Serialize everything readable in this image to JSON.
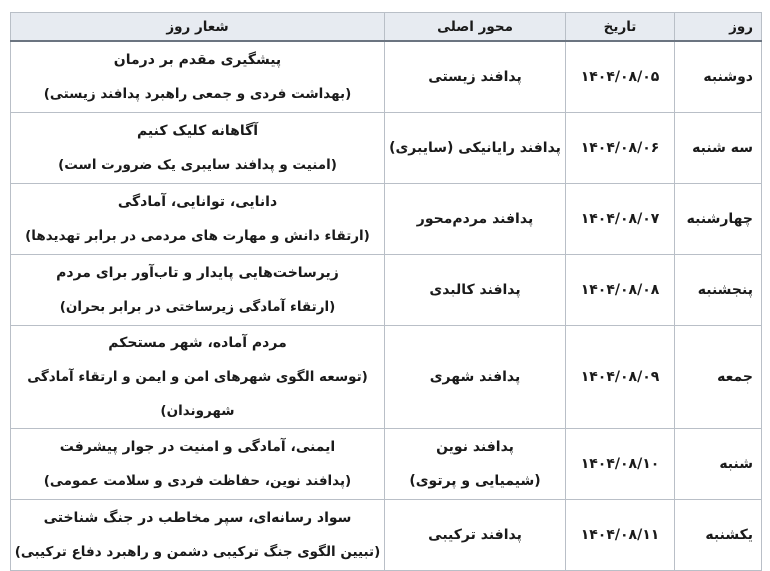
{
  "headers": {
    "day": "روز",
    "date": "تاریخ",
    "axis": "محور اصلی",
    "slogan": "شعار روز"
  },
  "rows": [
    {
      "day": "دوشنبه",
      "date": "۱۴۰۴/۰۸/۰۵",
      "axis": [
        "پدافند زیستی"
      ],
      "slogan": "پیشگیری مقدم بر درمان",
      "subtitle": "(بهداشت فردی و جمعی راهبرد پدافند زیستی)"
    },
    {
      "day": "سه شنبه",
      "date": "۱۴۰۴/۰۸/۰۶",
      "axis": [
        "پدافند رایانیکی (سایبری)"
      ],
      "slogan": "آگاهانه کلیک کنیم",
      "subtitle": "(امنیت و پدافند سایبری یک ضرورت است)"
    },
    {
      "day": "چهارشنبه",
      "date": "۱۴۰۴/۰۸/۰۷",
      "axis": [
        "پدافند مردم‌محور"
      ],
      "slogan": "دانایی، توانایی، آمادگی",
      "subtitle": "(ارتقاء دانش و مهارت های مردمی در برابر تهدیدها)"
    },
    {
      "day": "پنجشنبه",
      "date": "۱۴۰۴/۰۸/۰۸",
      "axis": [
        "پدافند کالبدی"
      ],
      "slogan": "زیرساخت‌هایی پایدار و تاب‌آور برای مردم",
      "subtitle": "(ارتقاء آمادگی زیرساختی در برابر بحران)"
    },
    {
      "day": "جمعه",
      "date": "۱۴۰۴/۰۸/۰۹",
      "axis": [
        "پدافند شهری"
      ],
      "slogan": "مردم آماده، شهر مستحکم",
      "subtitle": "(توسعه الگوی شهرهای امن و ایمن و ارتقاء آمادگی شهروندان)"
    },
    {
      "day": "شنبه",
      "date": "۱۴۰۴/۰۸/۱۰",
      "axis": [
        "پدافند نوین",
        "(شیمیایی و پرتوی)"
      ],
      "slogan": "ایمنی، آمادگی و امنیت در جوار پیشرفت",
      "subtitle": "(پدافند نوین، حفاظت فردی و سلامت عمومی)"
    },
    {
      "day": "یکشنبه",
      "date": "۱۴۰۴/۰۸/۱۱",
      "axis": [
        "پدافند ترکیبی"
      ],
      "slogan": "سواد رسانه‌ای، سپر مخاطب در جنگ شناختی",
      "subtitle": "(تبیین الگوی جنگ ترکیبی دشمن و راهبرد دفاع ترکیبی)"
    }
  ]
}
